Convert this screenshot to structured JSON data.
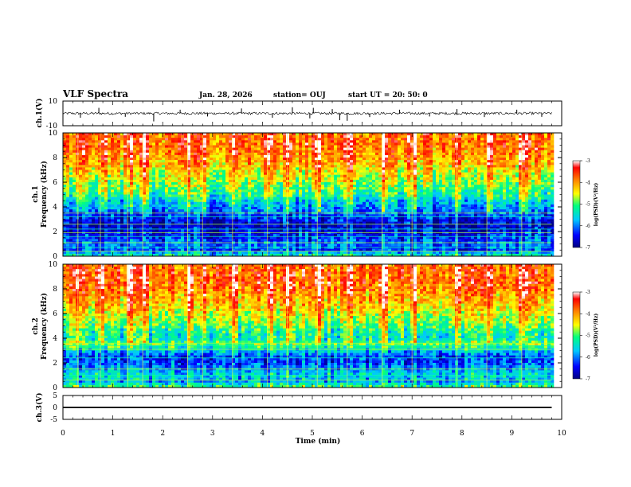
{
  "header": {
    "title": "VLF Spectra",
    "date": "Jan. 28, 2026",
    "station": "station= OUJ",
    "start": "start  UT =   20: 50: 0"
  },
  "chart_data": [
    {
      "type": "line",
      "panel": "ch1-waveform",
      "ylabel": "ch.1(V)",
      "ylim": [
        -10,
        10
      ],
      "y_ticks": [
        "10",
        "-10"
      ],
      "xlim": [
        0,
        10
      ],
      "baseline": 0,
      "noise_band": [
        -1.0,
        1.0
      ],
      "spikes": [
        {
          "t": 0.35,
          "v": -3.5
        },
        {
          "t": 0.72,
          "v": 4.5
        },
        {
          "t": 1.25,
          "v": -2.8
        },
        {
          "t": 1.82,
          "v": -6.5
        },
        {
          "t": 2.35,
          "v": 3.0
        },
        {
          "t": 2.9,
          "v": -2.5
        },
        {
          "t": 3.58,
          "v": 4.0
        },
        {
          "t": 4.2,
          "v": -3.5
        },
        {
          "t": 4.6,
          "v": 5.0
        },
        {
          "t": 4.95,
          "v": -4.0
        },
        {
          "t": 5.02,
          "v": 4.5
        },
        {
          "t": 5.4,
          "v": 3.5
        },
        {
          "t": 5.55,
          "v": -5.5
        },
        {
          "t": 5.7,
          "v": -6.0
        },
        {
          "t": 6.15,
          "v": -3.0
        },
        {
          "t": 6.75,
          "v": 3.0
        },
        {
          "t": 7.35,
          "v": -2.5
        },
        {
          "t": 7.9,
          "v": 3.5
        },
        {
          "t": 8.45,
          "v": -3.0
        },
        {
          "t": 9.1,
          "v": 3.0
        },
        {
          "t": 9.6,
          "v": -2.8
        }
      ]
    },
    {
      "type": "heatmap",
      "panel": "ch1-spectrogram",
      "ylabel": "ch.1",
      "ylabel2": "Frequency (kHz)",
      "ylim": [
        0,
        10
      ],
      "y_ticks": [
        "0",
        "2",
        "4",
        "6",
        "8",
        "10"
      ],
      "xlim": [
        0,
        10
      ],
      "data_extent_min": 9.8,
      "colorbar": {
        "label": "log(PSD)(V²/Hz)",
        "range": [
          -7,
          -3
        ],
        "ticks": [
          "-3",
          "-4",
          "-5",
          "-6",
          "-7"
        ]
      },
      "profile": [
        {
          "f": 0.0,
          "level": -5.2
        },
        {
          "f": 0.5,
          "level": -6.2
        },
        {
          "f": 1.0,
          "level": -6.0
        },
        {
          "f": 1.5,
          "level": -6.3
        },
        {
          "f": 2.0,
          "level": -6.5
        },
        {
          "f": 2.5,
          "level": -6.7
        },
        {
          "f": 3.0,
          "level": -6.4
        },
        {
          "f": 3.5,
          "level": -6.1
        },
        {
          "f": 4.0,
          "level": -5.9
        },
        {
          "f": 4.5,
          "level": -5.6
        },
        {
          "f": 5.0,
          "level": -5.2
        },
        {
          "f": 5.5,
          "level": -5.0
        },
        {
          "f": 6.0,
          "level": -4.8
        },
        {
          "f": 6.5,
          "level": -4.6
        },
        {
          "f": 7.0,
          "level": -4.4
        },
        {
          "f": 7.5,
          "level": -4.2
        },
        {
          "f": 8.0,
          "level": -4.0
        },
        {
          "f": 8.5,
          "level": -3.9
        },
        {
          "f": 9.0,
          "level": -3.8
        },
        {
          "f": 9.5,
          "level": -3.8
        },
        {
          "f": 10.0,
          "level": -3.9
        }
      ],
      "tone_lines_khz": [
        0.4,
        0.7,
        1.1,
        1.6,
        1.9,
        2.2,
        2.6,
        3.2,
        3.5
      ],
      "bright_bands_min": [
        0.3,
        0.75,
        1.3,
        1.6,
        2.5,
        2.8,
        3.4,
        4.1,
        4.5,
        5.1,
        5.7,
        6.4,
        7.0,
        7.9,
        8.5,
        9.2
      ]
    },
    {
      "type": "heatmap",
      "panel": "ch2-spectrogram",
      "ylabel": "ch.2",
      "ylabel2": "Frequency (kHz)",
      "ylim": [
        0,
        10
      ],
      "y_ticks": [
        "0",
        "2",
        "4",
        "6",
        "8",
        "10"
      ],
      "xlim": [
        0,
        10
      ],
      "data_extent_min": 9.8,
      "colorbar": {
        "label": "log(PSD)(V²/Hz)",
        "range": [
          -7,
          -3
        ],
        "ticks": [
          "-3",
          "-4",
          "-5",
          "-6",
          "-7"
        ]
      },
      "profile": [
        {
          "f": 0.0,
          "level": -5.0
        },
        {
          "f": 0.5,
          "level": -5.8
        },
        {
          "f": 1.0,
          "level": -5.5
        },
        {
          "f": 1.5,
          "level": -5.9
        },
        {
          "f": 2.0,
          "level": -6.2
        },
        {
          "f": 2.5,
          "level": -6.3
        },
        {
          "f": 3.0,
          "level": -5.6
        },
        {
          "f": 3.5,
          "level": -4.9
        },
        {
          "f": 4.0,
          "level": -5.4
        },
        {
          "f": 4.5,
          "level": -5.3
        },
        {
          "f": 5.0,
          "level": -5.0
        },
        {
          "f": 5.5,
          "level": -4.8
        },
        {
          "f": 6.0,
          "level": -4.6
        },
        {
          "f": 6.5,
          "level": -4.4
        },
        {
          "f": 7.0,
          "level": -4.2
        },
        {
          "f": 7.5,
          "level": -4.1
        },
        {
          "f": 8.0,
          "level": -3.9
        },
        {
          "f": 8.5,
          "level": -3.8
        },
        {
          "f": 9.0,
          "level": -3.8
        },
        {
          "f": 9.5,
          "level": -3.8
        },
        {
          "f": 10.0,
          "level": -3.9
        }
      ],
      "tone_lines_khz": [
        0.6,
        1.0,
        1.5,
        2.4,
        3.1,
        3.4,
        3.6
      ],
      "bright_bands_min": [
        0.3,
        0.75,
        1.3,
        1.6,
        2.5,
        2.8,
        3.4,
        4.1,
        4.5,
        5.1,
        5.7,
        6.4,
        7.0,
        7.9,
        8.5,
        9.2
      ]
    },
    {
      "type": "line",
      "panel": "ch3-waveform",
      "ylabel": "ch.3(V)",
      "ylim": [
        -5,
        5
      ],
      "y_ticks": [
        "5",
        "0",
        "-5"
      ],
      "xlim": [
        0,
        10
      ],
      "baseline": 0,
      "noise_band": [
        -0.3,
        0.3
      ],
      "spikes": []
    }
  ],
  "time_axis": {
    "label": "Time (min)",
    "ticks": [
      "0",
      "1",
      "2",
      "3",
      "4",
      "5",
      "6",
      "7",
      "8",
      "9",
      "10"
    ]
  },
  "colors": {
    "colormap": [
      "#000080",
      "#0000ff",
      "#00c8ff",
      "#00ff80",
      "#ffff00",
      "#ff8000",
      "#ff0000",
      "#ffffff"
    ],
    "trace": "#000000"
  }
}
